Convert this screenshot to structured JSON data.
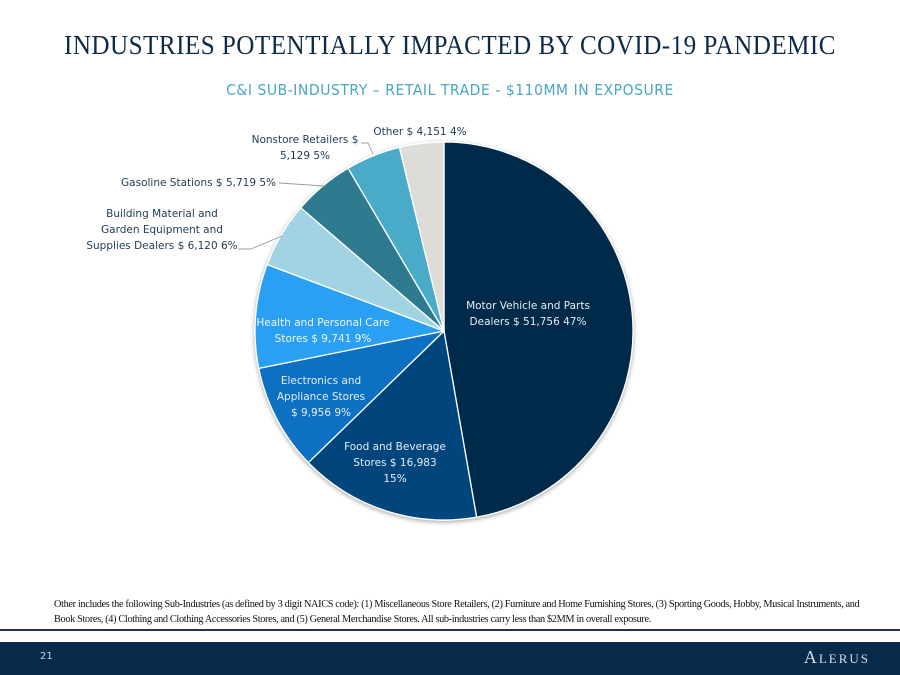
{
  "slide": {
    "title": "INDUSTRIES POTENTIALLY IMPACTED BY COVID-19 PANDEMIC",
    "subtitle": "C&I SUB-INDUSTRY – RETAIL TRADE - $110MM IN EXPOSURE",
    "footnote": "Other includes the following Sub-Industries (as defined by 3 digit NAICS code): (1) Miscellaneous Store Retailers, (2) Furniture and Home Furnishing Stores, (3) Sporting Goods, Hobby, Musical Instruments, and Book Stores, (4) Clothing and Clothing Accessories Stores, and (5) General Merchandise Stores. All sub-industries carry less than $2MM in overall exposure.",
    "page_number": "21",
    "brand": "Alerus"
  },
  "chart_data": {
    "type": "pie",
    "title": "C&I SUB-INDUSTRY – RETAIL TRADE - $110MM IN EXPOSURE",
    "units": "$ thousands",
    "start": "12 o'clock",
    "direction": "clockwise",
    "slices": [
      {
        "name": "Motor Vehicle and Parts Dealers",
        "value": 51756,
        "percent": 47,
        "color": "#03294a",
        "label_lines": [
          "Motor Vehicle and Parts",
          "Dealers $ 51,756  47%"
        ],
        "label_color": "#e6edf4",
        "label_position": "inside"
      },
      {
        "name": "Food and Beverage Stores",
        "value": 16983,
        "percent": 15,
        "color": "#00457c",
        "label_lines": [
          "Food and Beverage",
          "Stores  $ 16,983",
          "15%"
        ],
        "label_color": "#e6edf4",
        "label_position": "inside"
      },
      {
        "name": "Electronics and Appliance Stores",
        "value": 9956,
        "percent": 9,
        "color": "#0f6fc2",
        "label_lines": [
          "Electronics and",
          "Appliance Stores",
          "$ 9,956  9%"
        ],
        "label_color": "#e6edf4",
        "label_position": "inside"
      },
      {
        "name": "Health and Personal Care Stores",
        "value": 9741,
        "percent": 9,
        "color": "#2aa0f5",
        "label_lines": [
          "Health and Personal Care",
          "Stores  $ 9,741  9%"
        ],
        "label_color": "#eef6fd",
        "label_position": "inside"
      },
      {
        "name": "Building Material and Garden Equipment and Supplies Dealers",
        "value": 6120,
        "percent": 6,
        "color": "#a2d3e2",
        "label_lines": [
          "Building Material and",
          "Garden Equipment and",
          "Supplies Dealers  $ 6,120  6%"
        ],
        "label_color": "#1f3a55",
        "label_position": "outside"
      },
      {
        "name": "Gasoline Stations",
        "value": 5719,
        "percent": 5,
        "color": "#2e7a8f",
        "label_lines": [
          "Gasoline Stations  $ 5,719  5%"
        ],
        "label_color": "#1f3a55",
        "label_position": "outside"
      },
      {
        "name": "Nonstore Retailers",
        "value": 5129,
        "percent": 5,
        "color": "#4aabc8",
        "label_lines": [
          "Nonstore Retailers  $",
          "5,129  5%"
        ],
        "label_color": "#1f3a55",
        "label_position": "outside"
      },
      {
        "name": "Other",
        "value": 4151,
        "percent": 4,
        "color": "#dddcd7",
        "label_lines": [
          "Other $ 4,151  4%"
        ],
        "label_color": "#1f3a55",
        "label_position": "outside"
      }
    ]
  }
}
